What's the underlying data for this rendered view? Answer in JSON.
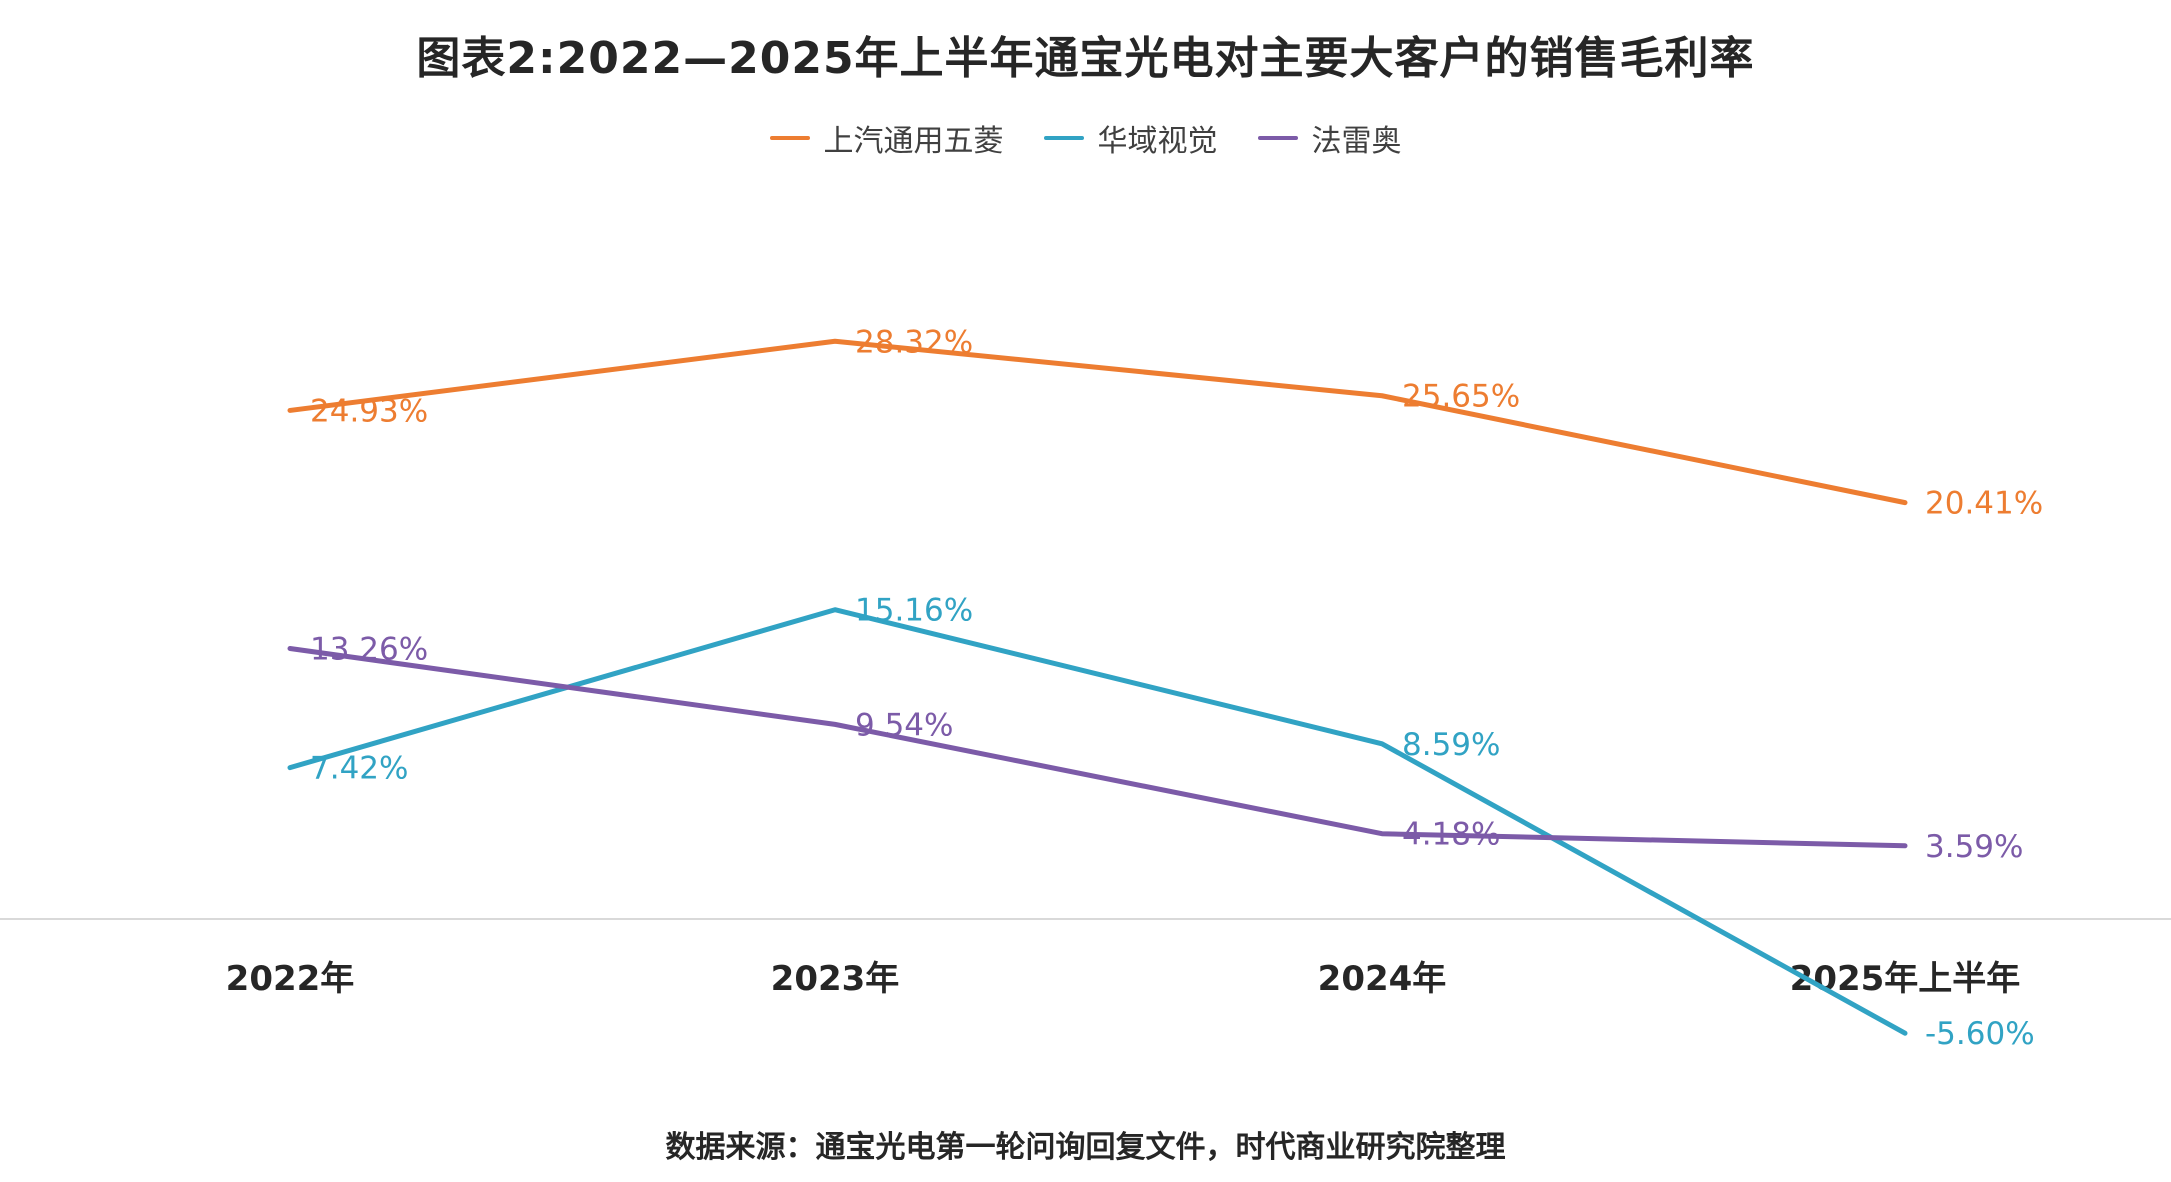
{
  "chart_data": {
    "type": "line",
    "title": "图表2:2022—2025年上半年通宝光电对主要大客户的销售毛利率",
    "categories": [
      "2022年",
      "2023年",
      "2024年",
      "2025年上半年"
    ],
    "series": [
      {
        "key": "saic-gm-wuling",
        "name": "上汽通用五菱",
        "color": "#ED7D31",
        "values": [
          24.93,
          28.32,
          25.65,
          20.41
        ]
      },
      {
        "key": "huayu-vision",
        "name": "华域视觉",
        "color": "#31A3C4",
        "values": [
          7.42,
          15.16,
          8.59,
          -5.6
        ]
      },
      {
        "key": "valeo",
        "name": "法雷奥",
        "color": "#7C5BA8",
        "values": [
          13.26,
          9.54,
          4.18,
          3.59
        ]
      }
    ],
    "value_format": "percent_2dp",
    "ylim": [
      -10,
      32
    ],
    "baseline": 0,
    "legend_position": "top",
    "grid": false,
    "colors": {
      "axis_line": "#D9D9D9",
      "title_text": "#262626",
      "axis_label_text": "#262626",
      "legend_text": "#404040",
      "background": "#FFFFFF"
    }
  },
  "footer": {
    "source_note": "数据来源：通宝光电第一轮问询回复文件，时代商业研究院整理"
  }
}
